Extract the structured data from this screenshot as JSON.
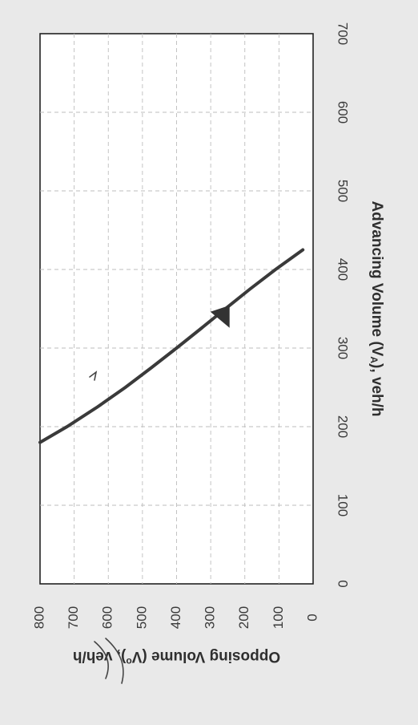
{
  "chart_data": {
    "type": "line",
    "orientation": "rotated-90",
    "xlabel": "Advancing Volume (V",
    "xlabel_sub": "A",
    "xlabel_suffix": "), veh/h",
    "ylabel": "Opposing Volume (V",
    "ylabel_sub": "o",
    "ylabel_suffix": "), veh/h",
    "xlim": [
      0,
      700
    ],
    "ylim": [
      0,
      800
    ],
    "x_ticks": [
      "0",
      "100",
      "200",
      "300",
      "400",
      "500",
      "600",
      "700"
    ],
    "y_ticks": [
      "0",
      "100",
      "200",
      "300",
      "400",
      "500",
      "600",
      "700",
      "800"
    ],
    "grid": true,
    "series": [
      {
        "x": [
          180,
          200,
          225,
          250,
          275,
          300,
          325,
          350,
          375,
          400,
          425
        ],
        "y": [
          800,
          721,
          632,
          550,
          474,
          400,
          328,
          257,
          185,
          110,
          30
        ]
      }
    ],
    "annotations": [
      {
        "type": "triangle-marker",
        "x": 340,
        "y": 240
      }
    ],
    "colors": {
      "curve": "#3a3a3a",
      "grid": "#bdbdbd",
      "frame": "#222222"
    }
  }
}
